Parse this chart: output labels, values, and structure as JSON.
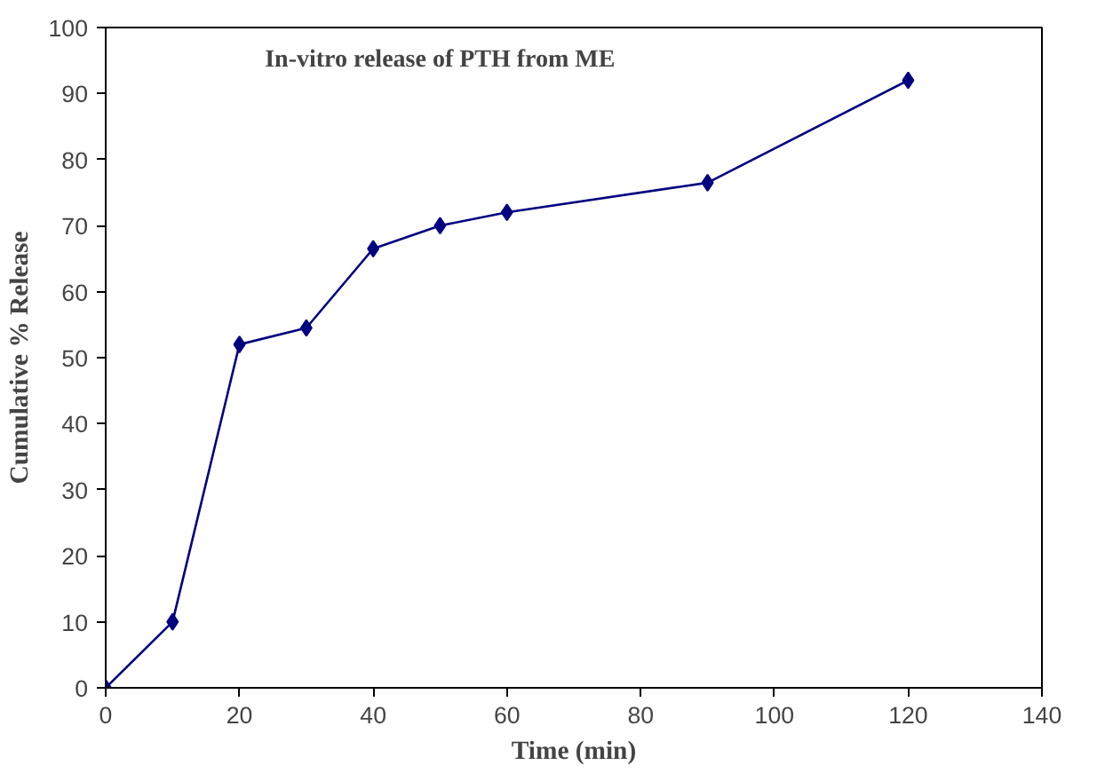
{
  "chart_data": {
    "type": "line",
    "title": "In-vitro release of PTH from ME",
    "xlabel": "Time (min)",
    "ylabel": "Cumulative % Release",
    "x": [
      0,
      10,
      20,
      30,
      40,
      50,
      60,
      90,
      120
    ],
    "series": [
      {
        "color": "#000080",
        "values": [
          0,
          10,
          52,
          54.5,
          66.5,
          70,
          72,
          76.5,
          92
        ]
      }
    ],
    "xlim": [
      0,
      140
    ],
    "xticks": [
      0,
      20,
      40,
      60,
      80,
      100,
      120,
      140
    ],
    "ylim": [
      0,
      100
    ],
    "yticks": [
      0,
      10,
      20,
      30,
      40,
      50,
      60,
      70,
      80,
      90,
      100
    ],
    "grid": false,
    "marker": "diamond",
    "line_style": "solid"
  }
}
